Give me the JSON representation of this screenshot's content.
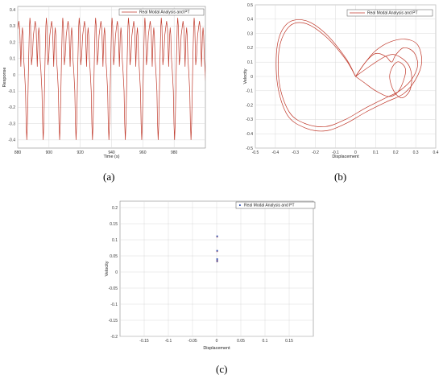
{
  "panel_labels": {
    "a": "(a)",
    "b": "(b)",
    "c": "(c)"
  },
  "chart_data": [
    {
      "id": "a",
      "type": "line",
      "xlabel": "Time (s)",
      "ylabel": "Response",
      "xlim": [
        880,
        1000
      ],
      "ylim": [
        -0.45,
        0.42
      ],
      "xticks": [
        880,
        900,
        920,
        940,
        960,
        980
      ],
      "yticks": [
        -0.4,
        -0.3,
        -0.2,
        -0.1,
        0,
        0.1,
        0.2,
        0.3,
        0.4
      ],
      "grid": true,
      "legend": {
        "position": "top-right",
        "entries": [
          "Real Modal Analysis and PT"
        ]
      },
      "series": [
        {
          "name": "Real Modal Analysis and PT",
          "color": "#c0392b",
          "period": 10.5,
          "x": [
            0,
            0.7,
            1.3,
            2.0,
            2.6,
            3.0,
            3.4,
            3.8,
            4.3,
            5.0,
            5.4,
            5.8,
            6.2,
            6.6,
            7.0,
            7.5,
            7.8,
            8.2,
            8.8,
            9.4,
            10.0,
            10.5
          ],
          "y": [
            0.28,
            0.33,
            0.28,
            0.05,
            0.24,
            0.29,
            0.24,
            0.1,
            0.03,
            -0.1,
            -0.3,
            -0.4,
            -0.3,
            -0.1,
            0.1,
            0.3,
            0.35,
            0.3,
            0.06,
            0.12,
            0.24,
            0.28
          ]
        }
      ]
    },
    {
      "id": "b",
      "type": "line",
      "xlabel": "Displacement",
      "ylabel": "Velocity",
      "xlim": [
        -0.5,
        0.4
      ],
      "ylim": [
        -0.5,
        0.5
      ],
      "xticks": [
        -0.5,
        -0.4,
        -0.3,
        -0.2,
        -0.1,
        0,
        0.1,
        0.2,
        0.3,
        0.4
      ],
      "yticks": [
        -0.5,
        -0.4,
        -0.3,
        -0.2,
        -0.1,
        0,
        0.1,
        0.2,
        0.3,
        0.4,
        0.5
      ],
      "grid": true,
      "legend": {
        "position": "top-right",
        "entries": [
          "Real Modal Analysis and PT"
        ]
      },
      "series": [
        {
          "name": "Real Modal Analysis and PT",
          "color": "#c0392b",
          "loops": [
            {
              "x": [
                0,
                -0.05,
                -0.15,
                -0.25,
                -0.33,
                -0.38,
                -0.38,
                -0.33,
                -0.25,
                -0.15,
                -0.05,
                0.05,
                0.15,
                0.22,
                0.28,
                0.31,
                0.29,
                0.24,
                0.2,
                0.18,
                0.15,
                0.1,
                0.05,
                0
              ],
              "y": [
                0,
                0.12,
                0.28,
                0.37,
                0.35,
                0.2,
                -0.05,
                -0.25,
                -0.33,
                -0.35,
                -0.3,
                -0.22,
                -0.15,
                -0.1,
                -0.02,
                0.08,
                0.17,
                0.2,
                0.15,
                0.1,
                0.14,
                0.16,
                0.1,
                0
              ]
            },
            {
              "x": [
                0,
                -0.05,
                -0.15,
                -0.25,
                -0.34,
                -0.39,
                -0.39,
                -0.34,
                -0.25,
                -0.15,
                -0.05,
                0.05,
                0.15,
                0.24,
                0.3,
                0.33,
                0.31,
                0.25,
                0.17,
                0.1,
                0.05,
                0
              ],
              "y": [
                0,
                0.13,
                0.3,
                0.39,
                0.37,
                0.22,
                -0.05,
                -0.27,
                -0.36,
                -0.38,
                -0.33,
                -0.25,
                -0.18,
                -0.12,
                -0.02,
                0.1,
                0.22,
                0.26,
                0.24,
                0.18,
                0.1,
                0
              ]
            },
            {
              "x": [
                0,
                0.08,
                0.15,
                0.2,
                0.26,
                0.28,
                0.27,
                0.23,
                0.19,
                0.17,
                0.19,
                0.22,
                0.25,
                0.22,
                0.17,
                0.1,
                0.04,
                0
              ],
              "y": [
                0,
                0.08,
                0.14,
                0.15,
                0.09,
                0,
                -0.1,
                -0.15,
                -0.1,
                0,
                0.08,
                0.1,
                0.04,
                -0.09,
                -0.14,
                -0.1,
                -0.04,
                0
              ]
            }
          ]
        }
      ]
    },
    {
      "id": "c",
      "type": "scatter",
      "xlabel": "Displacement",
      "ylabel": "Velocity",
      "xlim": [
        -0.2,
        0.2
      ],
      "ylim": [
        -0.2,
        0.22
      ],
      "xticks": [
        -0.15,
        -0.1,
        -0.05,
        0,
        0.05,
        0.1,
        0.15
      ],
      "yticks": [
        -0.2,
        -0.15,
        -0.1,
        -0.05,
        0,
        0.05,
        0.1,
        0.15,
        0.2
      ],
      "grid": true,
      "legend": {
        "position": "top-right",
        "entries": [
          "Real Modal Analysis and PT"
        ]
      },
      "series": [
        {
          "name": "Real Modal Analysis and PT",
          "color": "#c0392b",
          "marker_color": "#1f3fa8",
          "x": [
            0.001,
            0.001,
            0.001,
            0.001
          ],
          "y": [
            0.111,
            0.066,
            0.04,
            0.034
          ]
        }
      ]
    }
  ]
}
